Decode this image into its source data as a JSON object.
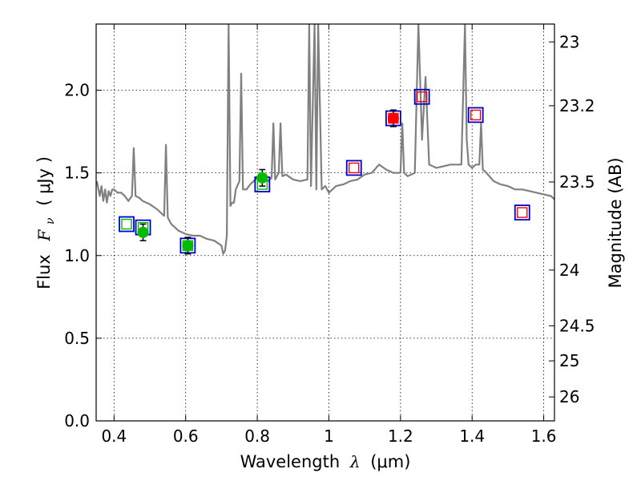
{
  "chart_data": {
    "type": "scatter",
    "title": "",
    "xlabel": "Wavelength",
    "xlabel_symbol": "λ",
    "xlabel_unit": "(μm)",
    "ylabel": "Flux",
    "ylabel_symbol": "F",
    "ylabel_subscript": "ν",
    "ylabel_unit": "( μJy )",
    "y2label": "Magnitude (AB)",
    "xlim": [
      0.35,
      1.63
    ],
    "ylim": [
      0.0,
      2.4
    ],
    "grid": true,
    "x_ticks": [
      {
        "value": 0.4,
        "label": "0.4"
      },
      {
        "value": 0.6,
        "label": "0.6"
      },
      {
        "value": 0.8,
        "label": "0.8"
      },
      {
        "value": 1.0,
        "label": "1"
      },
      {
        "value": 1.2,
        "label": "1.2"
      },
      {
        "value": 1.4,
        "label": "1.4"
      },
      {
        "value": 1.6,
        "label": "1.6"
      }
    ],
    "y_ticks": [
      {
        "value": 0.0,
        "label": "0.0"
      },
      {
        "value": 0.5,
        "label": "0.5"
      },
      {
        "value": 1.0,
        "label": "1.0"
      },
      {
        "value": 1.5,
        "label": "1.5"
      },
      {
        "value": 2.0,
        "label": "2.0"
      }
    ],
    "y2_ticks": [
      {
        "flux": 2.292,
        "label": "23"
      },
      {
        "flux": 1.906,
        "label": "23.2"
      },
      {
        "flux": 1.445,
        "label": "23.5"
      },
      {
        "flux": 0.912,
        "label": "24"
      },
      {
        "flux": 0.575,
        "label": "24.5"
      },
      {
        "flux": 0.363,
        "label": "25"
      },
      {
        "flux": 0.145,
        "label": "26"
      }
    ],
    "series": [
      {
        "name": "model_spectrum",
        "kind": "line",
        "color": "#808080",
        "x": [
          0.352,
          0.36,
          0.365,
          0.37,
          0.375,
          0.38,
          0.385,
          0.39,
          0.395,
          0.4,
          0.41,
          0.42,
          0.43,
          0.44,
          0.45,
          0.455,
          0.46,
          0.47,
          0.48,
          0.5,
          0.52,
          0.54,
          0.545,
          0.55,
          0.56,
          0.58,
          0.6,
          0.62,
          0.64,
          0.66,
          0.68,
          0.7,
          0.705,
          0.71,
          0.715,
          0.72,
          0.725,
          0.73,
          0.735,
          0.74,
          0.75,
          0.755,
          0.76,
          0.77,
          0.78,
          0.79,
          0.8,
          0.81,
          0.82,
          0.83,
          0.84,
          0.845,
          0.85,
          0.86,
          0.865,
          0.87,
          0.88,
          0.9,
          0.92,
          0.94,
          0.945,
          0.95,
          0.96,
          0.965,
          0.97,
          0.98,
          0.99,
          1.0,
          1.02,
          1.04,
          1.06,
          1.08,
          1.1,
          1.12,
          1.14,
          1.16,
          1.18,
          1.2,
          1.205,
          1.21,
          1.22,
          1.24,
          1.25,
          1.26,
          1.27,
          1.28,
          1.3,
          1.34,
          1.37,
          1.38,
          1.385,
          1.39,
          1.4,
          1.41,
          1.42,
          1.425,
          1.43,
          1.44,
          1.46,
          1.48,
          1.5,
          1.52,
          1.54,
          1.56,
          1.58,
          1.6,
          1.62,
          1.63
        ],
        "y": [
          1.45,
          1.36,
          1.42,
          1.33,
          1.4,
          1.32,
          1.39,
          1.36,
          1.4,
          1.4,
          1.38,
          1.38,
          1.36,
          1.33,
          1.36,
          1.65,
          1.36,
          1.35,
          1.33,
          1.31,
          1.28,
          1.24,
          1.67,
          1.23,
          1.19,
          1.15,
          1.13,
          1.12,
          1.12,
          1.1,
          1.09,
          1.06,
          1.01,
          1.03,
          1.12,
          2.4,
          1.3,
          1.32,
          1.32,
          1.4,
          1.45,
          2.1,
          1.4,
          1.4,
          1.43,
          1.45,
          1.47,
          1.48,
          1.48,
          1.45,
          1.47,
          1.8,
          1.46,
          1.5,
          1.8,
          1.48,
          1.49,
          1.46,
          1.45,
          1.46,
          2.4,
          1.42,
          2.4,
          1.4,
          2.4,
          1.4,
          1.42,
          1.38,
          1.42,
          1.43,
          1.45,
          1.46,
          1.49,
          1.5,
          1.55,
          1.52,
          1.5,
          1.5,
          1.8,
          1.5,
          1.48,
          1.5,
          2.4,
          1.7,
          2.08,
          1.55,
          1.53,
          1.55,
          1.55,
          2.4,
          1.7,
          1.55,
          1.53,
          1.55,
          1.55,
          1.8,
          1.52,
          1.5,
          1.45,
          1.43,
          1.42,
          1.4,
          1.4,
          1.39,
          1.38,
          1.37,
          1.36,
          1.34
        ]
      },
      {
        "name": "observed_green",
        "kind": "points",
        "color": "#00bb00",
        "points": [
          {
            "x": 0.481,
            "y": 1.14,
            "err": 0.05
          },
          {
            "x": 0.606,
            "y": 1.06,
            "err": 0.05
          },
          {
            "x": 0.814,
            "y": 1.47,
            "err": 0.05
          }
        ]
      },
      {
        "name": "observed_red",
        "kind": "points",
        "color": "#ff0000",
        "points": [
          {
            "x": 1.18,
            "y": 1.83,
            "err": 0.05
          }
        ]
      },
      {
        "name": "model_photometry_blue",
        "kind": "open_squares",
        "color": "#0000cc",
        "points": [
          {
            "x": 0.435,
            "y": 1.19
          },
          {
            "x": 0.481,
            "y": 1.17
          },
          {
            "x": 0.606,
            "y": 1.06
          },
          {
            "x": 0.814,
            "y": 1.43
          },
          {
            "x": 1.07,
            "y": 1.53
          },
          {
            "x": 1.18,
            "y": 1.83
          },
          {
            "x": 1.26,
            "y": 1.96
          },
          {
            "x": 1.41,
            "y": 1.85
          },
          {
            "x": 1.54,
            "y": 1.26
          }
        ]
      },
      {
        "name": "inner_green_squares",
        "kind": "open_squares",
        "color": "#00bb00",
        "points": [
          {
            "x": 0.435,
            "y": 1.19
          },
          {
            "x": 0.481,
            "y": 1.17
          },
          {
            "x": 0.606,
            "y": 1.06
          },
          {
            "x": 0.814,
            "y": 1.43
          }
        ]
      },
      {
        "name": "inner_red_squares",
        "kind": "open_squares",
        "color": "#ff0000",
        "points": [
          {
            "x": 1.07,
            "y": 1.53
          },
          {
            "x": 1.18,
            "y": 1.83
          },
          {
            "x": 1.26,
            "y": 1.96
          },
          {
            "x": 1.41,
            "y": 1.85
          },
          {
            "x": 1.54,
            "y": 1.26
          }
        ]
      }
    ]
  }
}
